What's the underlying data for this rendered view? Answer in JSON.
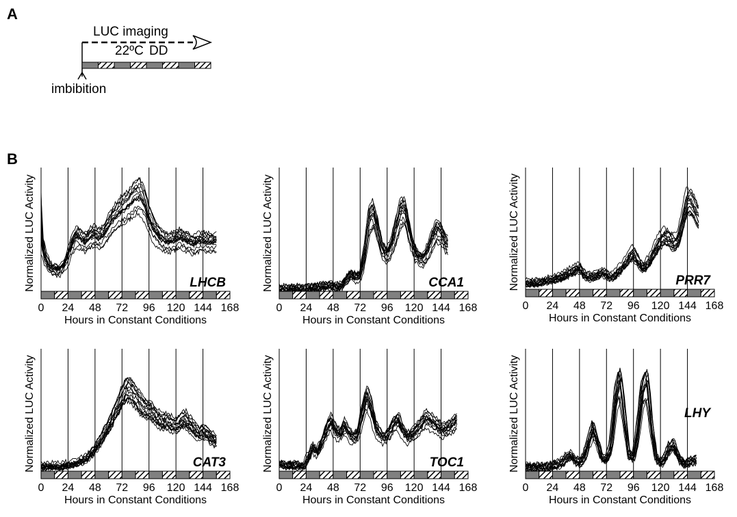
{
  "panel_a": {
    "label": "A",
    "imaging_label": "LUC imaging",
    "temperature_label": "22ºC",
    "light_label": "DD",
    "event_label": "imbibition"
  },
  "panel_b": {
    "label": "B"
  },
  "colors": {
    "trace": "#000000",
    "subjective_day_box": "#808080",
    "subjective_night_hatch": "#000000",
    "background": "#ffffff"
  },
  "chart_data": [
    {
      "type": "line",
      "gene": "LHCB",
      "ylabel": "Normalized LUC Activity",
      "xlabel": "Hours in Constant Conditions",
      "xticks": [
        0,
        24,
        48,
        72,
        96,
        120,
        144,
        168
      ],
      "xlim": [
        0,
        168
      ],
      "ylim": [
        0,
        1
      ],
      "vertical_lines": [
        0,
        24,
        48,
        72,
        96,
        120,
        144
      ],
      "series_count": 14,
      "mean_profile": {
        "x": [
          0,
          1,
          4,
          8,
          12,
          16,
          20,
          24,
          28,
          32,
          36,
          40,
          44,
          48,
          52,
          56,
          60,
          64,
          68,
          72,
          76,
          80,
          84,
          88,
          92,
          96,
          100,
          104,
          108,
          112,
          116,
          120,
          124,
          128,
          132,
          136,
          140,
          144,
          148,
          152,
          156
        ],
        "y": [
          0.7,
          0.4,
          0.28,
          0.2,
          0.18,
          0.17,
          0.2,
          0.28,
          0.38,
          0.45,
          0.42,
          0.4,
          0.44,
          0.46,
          0.43,
          0.46,
          0.52,
          0.58,
          0.62,
          0.66,
          0.68,
          0.72,
          0.76,
          0.78,
          0.72,
          0.6,
          0.52,
          0.46,
          0.42,
          0.4,
          0.4,
          0.42,
          0.44,
          0.42,
          0.4,
          0.38,
          0.4,
          0.41,
          0.4,
          0.4,
          0.4
        ]
      }
    },
    {
      "type": "line",
      "gene": "CCA1",
      "ylabel": "Normalized LUC Activity",
      "xlabel": "Hours in Constant Conditions",
      "xticks": [
        0,
        24,
        48,
        72,
        96,
        120,
        144,
        168
      ],
      "xlim": [
        0,
        168
      ],
      "ylim": [
        0,
        1
      ],
      "vertical_lines": [
        0,
        24,
        48,
        72,
        96,
        120,
        144
      ],
      "series_count": 14,
      "mean_profile": {
        "x": [
          0,
          8,
          16,
          24,
          32,
          40,
          44,
          48,
          52,
          56,
          60,
          64,
          68,
          72,
          76,
          80,
          84,
          88,
          92,
          96,
          100,
          104,
          108,
          112,
          116,
          120,
          124,
          128,
          132,
          136,
          140,
          144,
          148,
          150
        ],
        "y": [
          0.02,
          0.02,
          0.02,
          0.02,
          0.03,
          0.04,
          0.05,
          0.04,
          0.04,
          0.05,
          0.1,
          0.14,
          0.12,
          0.13,
          0.3,
          0.58,
          0.64,
          0.5,
          0.34,
          0.3,
          0.36,
          0.5,
          0.64,
          0.66,
          0.48,
          0.34,
          0.28,
          0.26,
          0.32,
          0.42,
          0.5,
          0.48,
          0.4,
          0.38
        ]
      }
    },
    {
      "type": "line",
      "gene": "PRR7",
      "ylabel": "Normalized LUC Activity",
      "xlabel": "Hours in Constant Conditions",
      "xticks": [
        0,
        24,
        48,
        72,
        96,
        120,
        144,
        168
      ],
      "xlim": [
        0,
        168
      ],
      "ylim": [
        0,
        1
      ],
      "vertical_lines": [
        0,
        24,
        48,
        72,
        96,
        120,
        144
      ],
      "series_count": 14,
      "mean_profile": {
        "x": [
          0,
          8,
          16,
          24,
          32,
          40,
          44,
          48,
          52,
          56,
          60,
          64,
          68,
          72,
          76,
          80,
          84,
          88,
          92,
          96,
          100,
          104,
          108,
          112,
          116,
          120,
          124,
          128,
          132,
          136,
          140,
          144,
          148,
          152,
          154
        ],
        "y": [
          0.05,
          0.05,
          0.06,
          0.08,
          0.1,
          0.14,
          0.16,
          0.18,
          0.12,
          0.1,
          0.1,
          0.12,
          0.14,
          0.12,
          0.1,
          0.12,
          0.16,
          0.2,
          0.26,
          0.3,
          0.24,
          0.18,
          0.2,
          0.26,
          0.34,
          0.4,
          0.44,
          0.42,
          0.38,
          0.42,
          0.56,
          0.74,
          0.72,
          0.64,
          0.6
        ]
      }
    },
    {
      "type": "line",
      "gene": "CAT3",
      "ylabel": "Normalized LUC Activity",
      "xlabel": "Hours in Constant Conditions",
      "xticks": [
        0,
        24,
        48,
        72,
        96,
        120,
        144,
        168
      ],
      "xlim": [
        0,
        168
      ],
      "ylim": [
        0,
        1
      ],
      "vertical_lines": [
        0,
        24,
        48,
        72,
        96,
        120,
        144
      ],
      "series_count": 14,
      "mean_profile": {
        "x": [
          0,
          8,
          16,
          24,
          32,
          40,
          44,
          48,
          52,
          56,
          60,
          64,
          68,
          72,
          76,
          80,
          84,
          88,
          92,
          96,
          100,
          104,
          108,
          112,
          116,
          120,
          124,
          128,
          132,
          136,
          140,
          144,
          148,
          152,
          156
        ],
        "y": [
          0.04,
          0.04,
          0.04,
          0.05,
          0.07,
          0.1,
          0.14,
          0.18,
          0.24,
          0.3,
          0.36,
          0.44,
          0.52,
          0.6,
          0.66,
          0.64,
          0.6,
          0.54,
          0.5,
          0.5,
          0.46,
          0.42,
          0.4,
          0.4,
          0.38,
          0.36,
          0.4,
          0.42,
          0.38,
          0.34,
          0.3,
          0.32,
          0.3,
          0.26,
          0.24
        ]
      }
    },
    {
      "type": "line",
      "gene": "TOC1",
      "ylabel": "Normalized LUC Activity",
      "xlabel": "Hours in Constant Conditions",
      "xticks": [
        0,
        24,
        48,
        72,
        96,
        120,
        144,
        168
      ],
      "xlim": [
        0,
        168
      ],
      "ylim": [
        0,
        1
      ],
      "vertical_lines": [
        0,
        24,
        48,
        72,
        96,
        120,
        144
      ],
      "series_count": 14,
      "mean_profile": {
        "x": [
          0,
          8,
          16,
          22,
          26,
          30,
          34,
          38,
          42,
          46,
          50,
          54,
          58,
          62,
          66,
          70,
          74,
          78,
          82,
          86,
          90,
          94,
          98,
          102,
          106,
          110,
          114,
          118,
          122,
          126,
          130,
          134,
          138,
          142,
          146,
          150,
          154,
          158
        ],
        "y": [
          0.06,
          0.05,
          0.05,
          0.04,
          0.12,
          0.2,
          0.16,
          0.24,
          0.34,
          0.42,
          0.34,
          0.3,
          0.38,
          0.32,
          0.28,
          0.3,
          0.48,
          0.62,
          0.52,
          0.36,
          0.3,
          0.28,
          0.32,
          0.4,
          0.42,
          0.34,
          0.28,
          0.3,
          0.34,
          0.38,
          0.44,
          0.42,
          0.4,
          0.36,
          0.34,
          0.36,
          0.38,
          0.42
        ]
      }
    },
    {
      "type": "line",
      "gene": "LHY",
      "ylabel": "Normalized LUC Activity",
      "xlabel": "Hours in Constant Conditions",
      "xticks": [
        0,
        24,
        48,
        72,
        96,
        120,
        144,
        168
      ],
      "xlim": [
        0,
        168
      ],
      "ylim": [
        0,
        1
      ],
      "vertical_lines": [
        0,
        24,
        48,
        72,
        96,
        120,
        144
      ],
      "series_count": 14,
      "mean_profile": {
        "x": [
          0,
          8,
          16,
          24,
          32,
          36,
          40,
          44,
          48,
          52,
          56,
          60,
          64,
          68,
          72,
          76,
          80,
          84,
          88,
          92,
          96,
          100,
          104,
          108,
          112,
          116,
          120,
          124,
          128,
          132,
          136,
          140,
          144,
          148,
          152
        ],
        "y": [
          0.03,
          0.03,
          0.03,
          0.04,
          0.06,
          0.1,
          0.12,
          0.08,
          0.06,
          0.1,
          0.22,
          0.34,
          0.22,
          0.1,
          0.08,
          0.2,
          0.55,
          0.72,
          0.42,
          0.12,
          0.1,
          0.32,
          0.62,
          0.7,
          0.36,
          0.1,
          0.06,
          0.1,
          0.18,
          0.2,
          0.1,
          0.06,
          0.06,
          0.08,
          0.08
        ]
      }
    }
  ]
}
